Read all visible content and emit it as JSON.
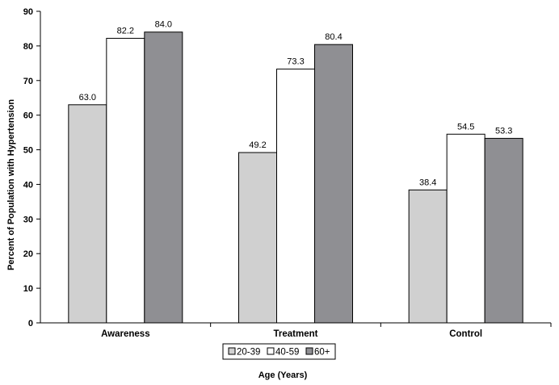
{
  "chart_data": {
    "type": "bar",
    "categories": [
      "Awareness",
      "Treatment",
      "Control"
    ],
    "series": [
      {
        "name": "20-39",
        "values": [
          63.0,
          49.2,
          38.4
        ],
        "color": "#d0d0d0"
      },
      {
        "name": "40-59",
        "values": [
          82.2,
          73.3,
          54.5
        ],
        "color": "#ffffff"
      },
      {
        "name": "60+",
        "values": [
          84.0,
          80.4,
          53.3
        ],
        "color": "#8f8f93"
      }
    ],
    "data_labels": [
      [
        "63.0",
        "49.2",
        "38.4"
      ],
      [
        "82.2",
        "73.3",
        "54.5"
      ],
      [
        "84.0",
        "80.4",
        "53.3"
      ]
    ],
    "y_ticks": [
      "0",
      "10",
      "20",
      "30",
      "40",
      "50",
      "60",
      "70",
      "80",
      "90"
    ],
    "ylim": [
      0,
      90
    ],
    "xlabel": "Age (Years)",
    "ylabel": "Percent of Population with Hypertension",
    "title": "",
    "grid": false,
    "legend_position": "bottom-center"
  }
}
